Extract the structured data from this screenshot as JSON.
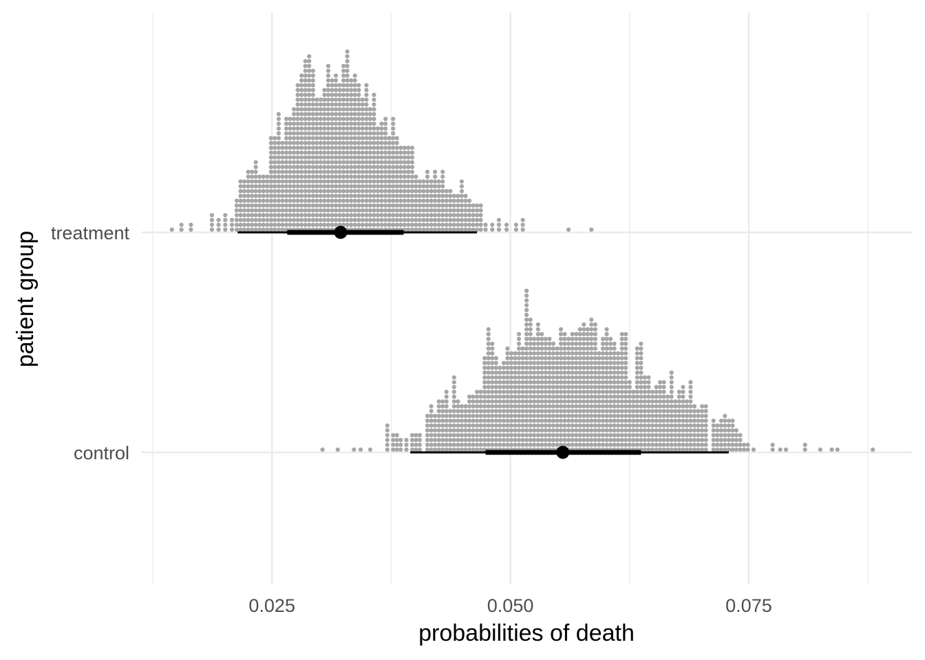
{
  "chart_data": {
    "type": "dotplot",
    "xlabel": "probabilities of death",
    "ylabel": "patient group",
    "xlim": [
      0.0125,
      0.0885
    ],
    "x_ticks": [
      0.025,
      0.05,
      0.075
    ],
    "x_tick_labels": [
      "0.025",
      "0.050",
      "0.075"
    ],
    "categories": [
      "treatment",
      "control"
    ],
    "grid": true,
    "colors": {
      "dots": "#a6a6a6",
      "interval": "#000000",
      "grid": "#ebebeb"
    },
    "series": [
      {
        "name": "treatment",
        "point": 0.0322,
        "interval_66": [
          0.0266,
          0.0388
        ],
        "interval_95": [
          0.0214,
          0.0465
        ],
        "bin_width": 0.00033,
        "bins": [
          [
            0.0145,
            1
          ],
          [
            0.0155,
            2
          ],
          [
            0.0165,
            2
          ],
          [
            0.0187,
            4
          ],
          [
            0.0194,
            3
          ],
          [
            0.0201,
            4
          ],
          [
            0.0208,
            3
          ],
          [
            0.0213,
            7
          ],
          [
            0.0217,
            11
          ],
          [
            0.0221,
            11
          ],
          [
            0.0225,
            13
          ],
          [
            0.0229,
            13
          ],
          [
            0.0233,
            15
          ],
          [
            0.0237,
            12
          ],
          [
            0.0241,
            12
          ],
          [
            0.0245,
            12
          ],
          [
            0.0249,
            20
          ],
          [
            0.0253,
            20
          ],
          [
            0.0257,
            25
          ],
          [
            0.0261,
            19
          ],
          [
            0.0265,
            24
          ],
          [
            0.0269,
            24
          ],
          [
            0.0273,
            26
          ],
          [
            0.0277,
            31
          ],
          [
            0.0281,
            33
          ],
          [
            0.0285,
            36
          ],
          [
            0.0289,
            37
          ],
          [
            0.0293,
            34
          ],
          [
            0.0297,
            28
          ],
          [
            0.0301,
            28
          ],
          [
            0.0305,
            30
          ],
          [
            0.0309,
            35
          ],
          [
            0.0313,
            32
          ],
          [
            0.0317,
            33
          ],
          [
            0.0321,
            31
          ],
          [
            0.0325,
            35
          ],
          [
            0.0329,
            38
          ],
          [
            0.0333,
            32
          ],
          [
            0.0337,
            33
          ],
          [
            0.0341,
            31
          ],
          [
            0.0345,
            28
          ],
          [
            0.0349,
            31
          ],
          [
            0.0353,
            26
          ],
          [
            0.0357,
            29
          ],
          [
            0.0361,
            22
          ],
          [
            0.0365,
            23
          ],
          [
            0.0369,
            24
          ],
          [
            0.0373,
            20
          ],
          [
            0.0377,
            24
          ],
          [
            0.0381,
            20
          ],
          [
            0.0385,
            18
          ],
          [
            0.0389,
            18
          ],
          [
            0.0393,
            18
          ],
          [
            0.0397,
            18
          ],
          [
            0.0401,
            12
          ],
          [
            0.0405,
            11
          ],
          [
            0.0409,
            11
          ],
          [
            0.0413,
            13
          ],
          [
            0.0417,
            11
          ],
          [
            0.0421,
            13
          ],
          [
            0.0425,
            11
          ],
          [
            0.0429,
            13
          ],
          [
            0.0433,
            9
          ],
          [
            0.0437,
            9
          ],
          [
            0.0441,
            8
          ],
          [
            0.0445,
            8
          ],
          [
            0.0449,
            11
          ],
          [
            0.0453,
            8
          ],
          [
            0.0457,
            7
          ],
          [
            0.0461,
            6
          ],
          [
            0.0465,
            6
          ],
          [
            0.0469,
            6
          ],
          [
            0.0474,
            2
          ],
          [
            0.0481,
            2
          ],
          [
            0.0488,
            3
          ],
          [
            0.0496,
            2
          ],
          [
            0.0506,
            2
          ],
          [
            0.0513,
            3
          ],
          [
            0.0561,
            1
          ],
          [
            0.0585,
            1
          ]
        ]
      },
      {
        "name": "control",
        "point": 0.0555,
        "interval_66": [
          0.0474,
          0.0637
        ],
        "interval_95": [
          0.0395,
          0.0729
        ],
        "bin_width": 0.00033,
        "bins": [
          [
            0.0303,
            1
          ],
          [
            0.0319,
            1
          ],
          [
            0.0336,
            1
          ],
          [
            0.0343,
            1
          ],
          [
            0.0353,
            1
          ],
          [
            0.0371,
            6
          ],
          [
            0.0377,
            4
          ],
          [
            0.0381,
            4
          ],
          [
            0.0385,
            3
          ],
          [
            0.0391,
            3
          ],
          [
            0.0397,
            4
          ],
          [
            0.0401,
            4
          ],
          [
            0.0405,
            4
          ],
          [
            0.0413,
            8
          ],
          [
            0.0417,
            10
          ],
          [
            0.0421,
            8
          ],
          [
            0.0425,
            11
          ],
          [
            0.0429,
            11
          ],
          [
            0.0433,
            13
          ],
          [
            0.0437,
            9
          ],
          [
            0.0441,
            16
          ],
          [
            0.0445,
            11
          ],
          [
            0.0449,
            10
          ],
          [
            0.0453,
            10
          ],
          [
            0.0457,
            12
          ],
          [
            0.0461,
            12
          ],
          [
            0.0465,
            13
          ],
          [
            0.0469,
            13
          ],
          [
            0.0473,
            20
          ],
          [
            0.0477,
            26
          ],
          [
            0.0481,
            23
          ],
          [
            0.0485,
            20
          ],
          [
            0.0489,
            18
          ],
          [
            0.0493,
            19
          ],
          [
            0.0497,
            22
          ],
          [
            0.0501,
            21
          ],
          [
            0.0505,
            21
          ],
          [
            0.0509,
            25
          ],
          [
            0.0513,
            22
          ],
          [
            0.0517,
            34
          ],
          [
            0.0521,
            28
          ],
          [
            0.0525,
            24
          ],
          [
            0.0529,
            27
          ],
          [
            0.0533,
            25
          ],
          [
            0.0537,
            24
          ],
          [
            0.0541,
            24
          ],
          [
            0.0545,
            23
          ],
          [
            0.0549,
            22
          ],
          [
            0.0553,
            26
          ],
          [
            0.0557,
            25
          ],
          [
            0.0561,
            24
          ],
          [
            0.0565,
            25
          ],
          [
            0.0569,
            25
          ],
          [
            0.0573,
            26
          ],
          [
            0.0577,
            27
          ],
          [
            0.0581,
            26
          ],
          [
            0.0585,
            28
          ],
          [
            0.0589,
            27
          ],
          [
            0.0593,
            21
          ],
          [
            0.0597,
            24
          ],
          [
            0.0601,
            26
          ],
          [
            0.0605,
            24
          ],
          [
            0.0609,
            23
          ],
          [
            0.0613,
            21
          ],
          [
            0.0617,
            25
          ],
          [
            0.0621,
            25
          ],
          [
            0.0625,
            15
          ],
          [
            0.0629,
            13
          ],
          [
            0.0633,
            22
          ],
          [
            0.0637,
            23
          ],
          [
            0.0641,
            16
          ],
          [
            0.0645,
            16
          ],
          [
            0.0649,
            13
          ],
          [
            0.0653,
            14
          ],
          [
            0.0657,
            15
          ],
          [
            0.0661,
            15
          ],
          [
            0.0665,
            12
          ],
          [
            0.0669,
            17
          ],
          [
            0.0673,
            11
          ],
          [
            0.0677,
            13
          ],
          [
            0.0681,
            14
          ],
          [
            0.0685,
            11
          ],
          [
            0.0689,
            15
          ],
          [
            0.0693,
            10
          ],
          [
            0.0697,
            9
          ],
          [
            0.0701,
            10
          ],
          [
            0.0705,
            10
          ],
          [
            0.0713,
            7
          ],
          [
            0.0717,
            6
          ],
          [
            0.0721,
            7
          ],
          [
            0.0725,
            8
          ],
          [
            0.0729,
            7
          ],
          [
            0.0733,
            7
          ],
          [
            0.0737,
            5
          ],
          [
            0.0741,
            4
          ],
          [
            0.0745,
            2
          ],
          [
            0.0749,
            2
          ],
          [
            0.0755,
            1
          ],
          [
            0.0775,
            2
          ],
          [
            0.0783,
            1
          ],
          [
            0.0789,
            1
          ],
          [
            0.0809,
            2
          ],
          [
            0.0825,
            1
          ],
          [
            0.0837,
            1
          ],
          [
            0.0843,
            1
          ],
          [
            0.088,
            1
          ]
        ]
      }
    ]
  }
}
